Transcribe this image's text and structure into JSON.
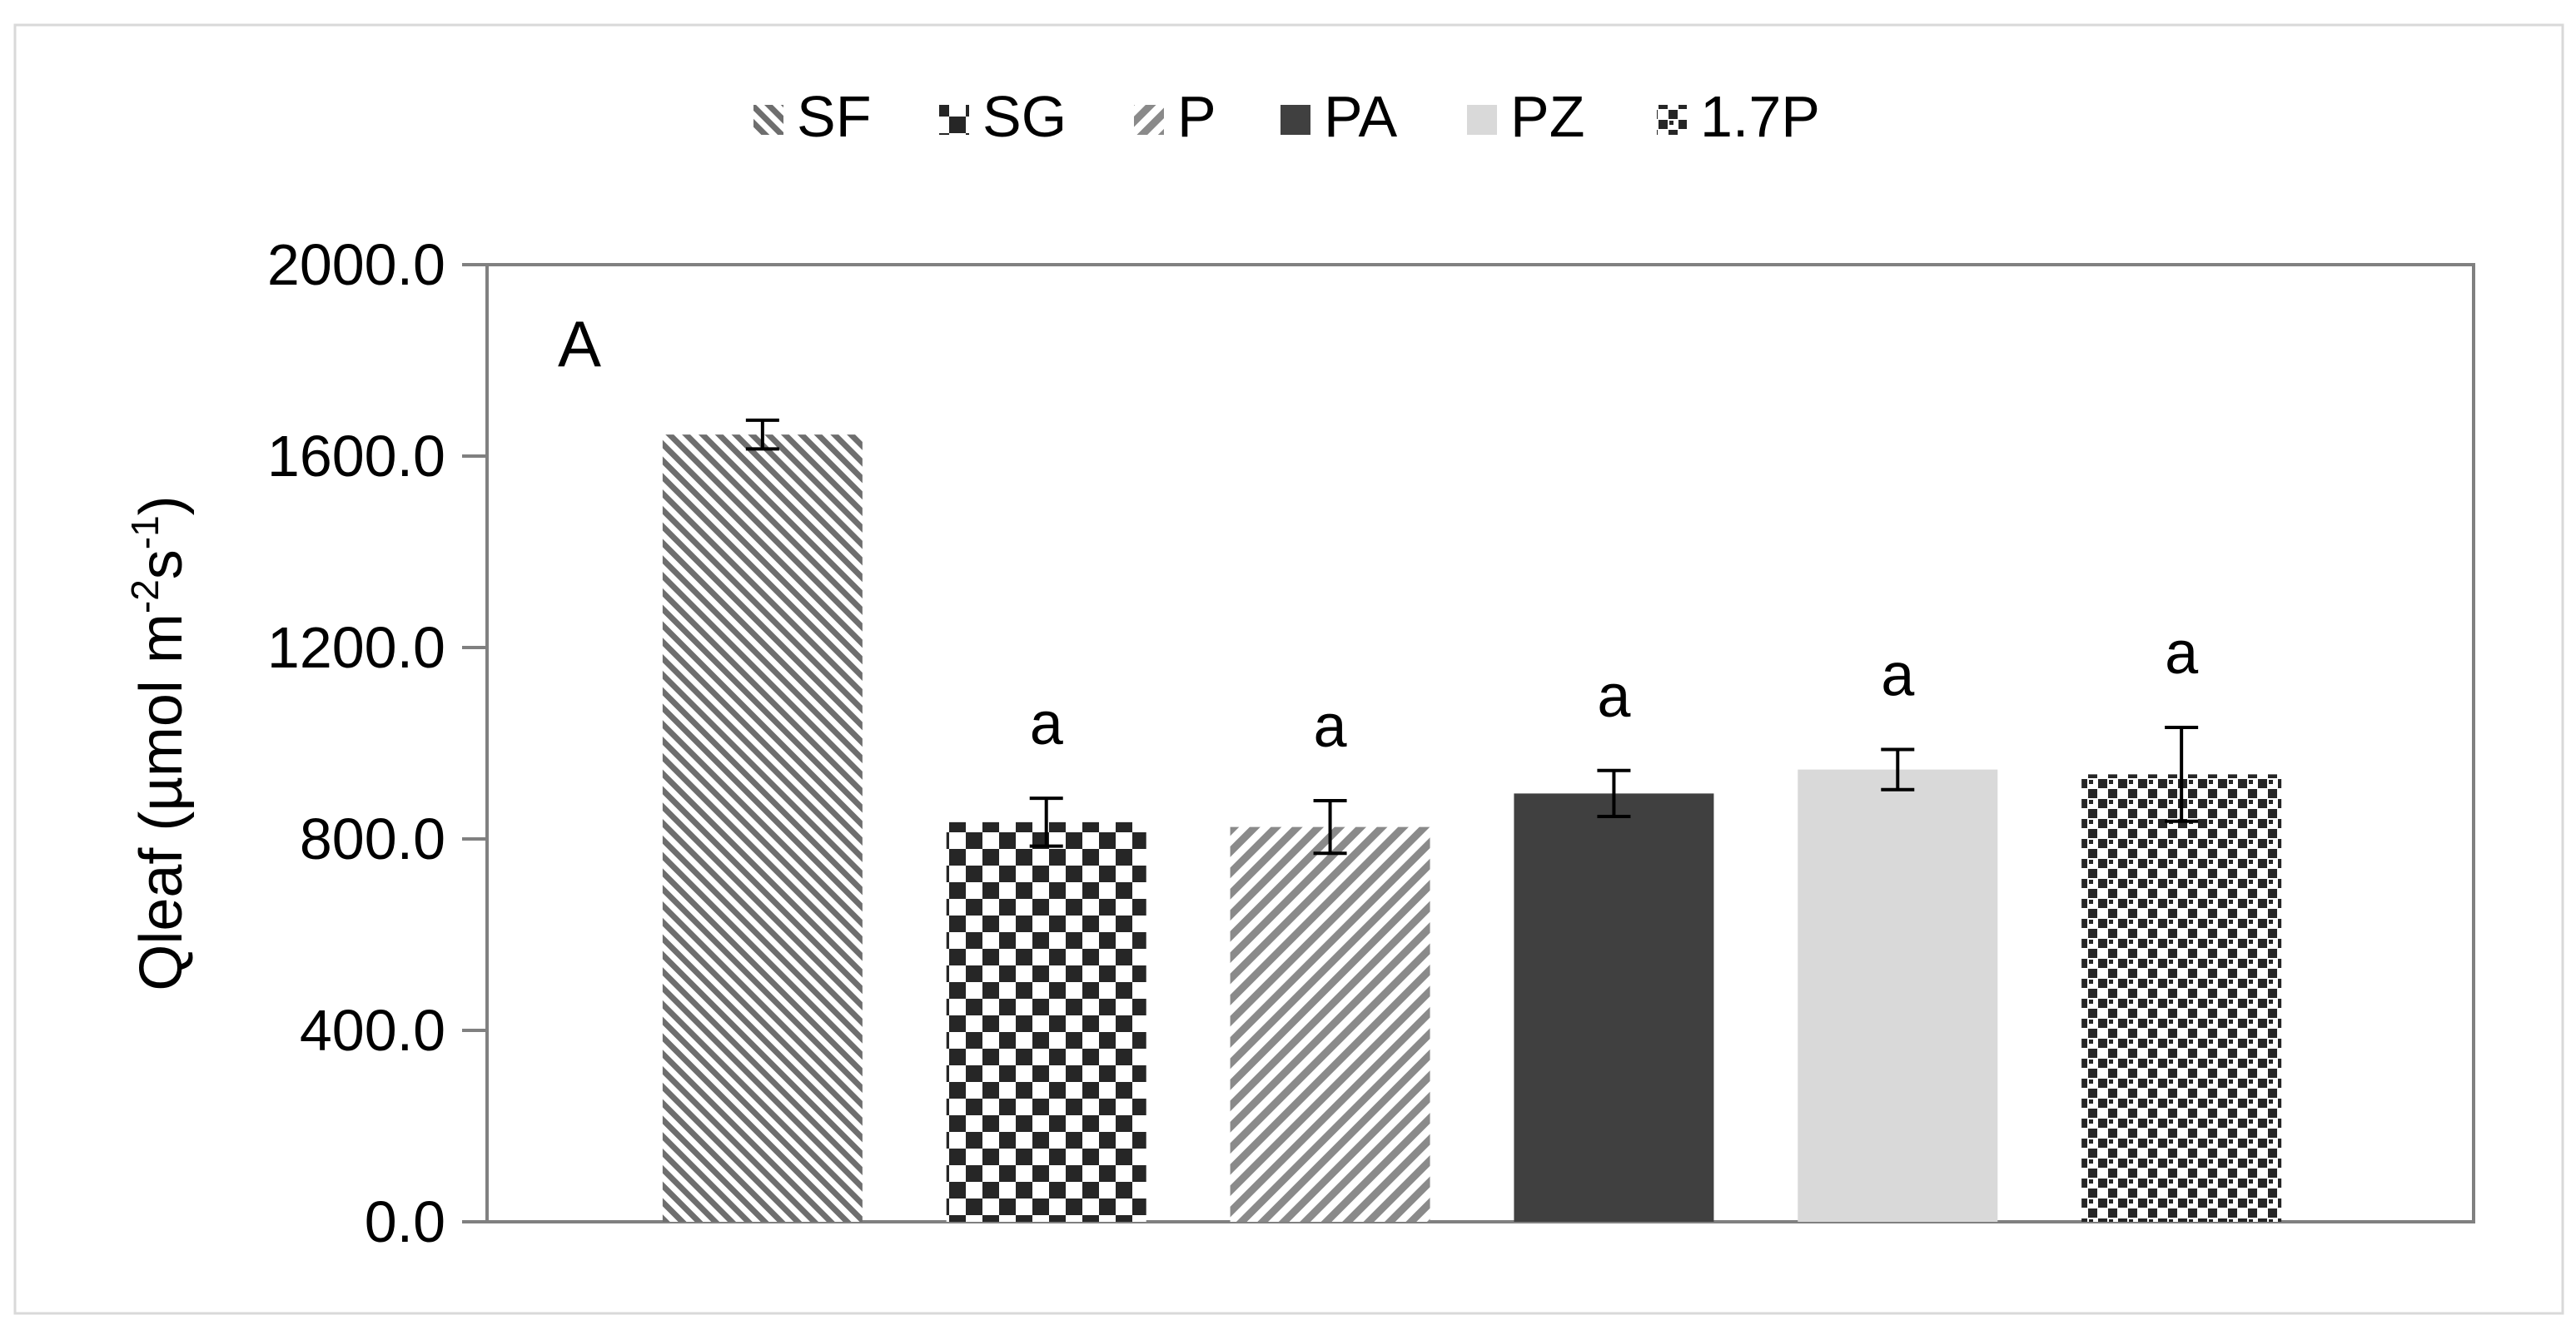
{
  "chart_data": {
    "type": "bar",
    "panel_label": "A",
    "ylabel": {
      "base": "Qleaf (µmol m",
      "sup1": "-2",
      "mid": "s",
      "sup2": "-1",
      "end": ")"
    },
    "ylim": [
      0,
      2000
    ],
    "yticks": [
      "0.0",
      "400.0",
      "800.0",
      "1200.0",
      "1600.0",
      "2000.0"
    ],
    "ytick_values": [
      0,
      400,
      800,
      1200,
      1600,
      2000
    ],
    "grid": false,
    "legend_position": "top",
    "series": [
      {
        "name": "SF",
        "value": 1645,
        "error": 30,
        "letter": "",
        "pattern": "diag-fine",
        "color": "#6e6e6e"
      },
      {
        "name": "SG",
        "value": 835,
        "error": 50,
        "letter": "a",
        "pattern": "checker",
        "color": "#262626"
      },
      {
        "name": "P",
        "value": 825,
        "error": 55,
        "letter": "a",
        "pattern": "diag-wide",
        "color": "#8a8a8a"
      },
      {
        "name": "PA",
        "value": 895,
        "error": 48,
        "letter": "a",
        "pattern": "solid-dark",
        "color": "#404040"
      },
      {
        "name": "PZ",
        "value": 945,
        "error": 42,
        "letter": "a",
        "pattern": "solid-light",
        "color": "#d9d9d9"
      },
      {
        "name": "1.7P",
        "value": 935,
        "error": 98,
        "letter": "a",
        "pattern": "dots",
        "color": "#262626"
      }
    ],
    "axis_color": "#808080",
    "error_bar_color": "#000000"
  }
}
